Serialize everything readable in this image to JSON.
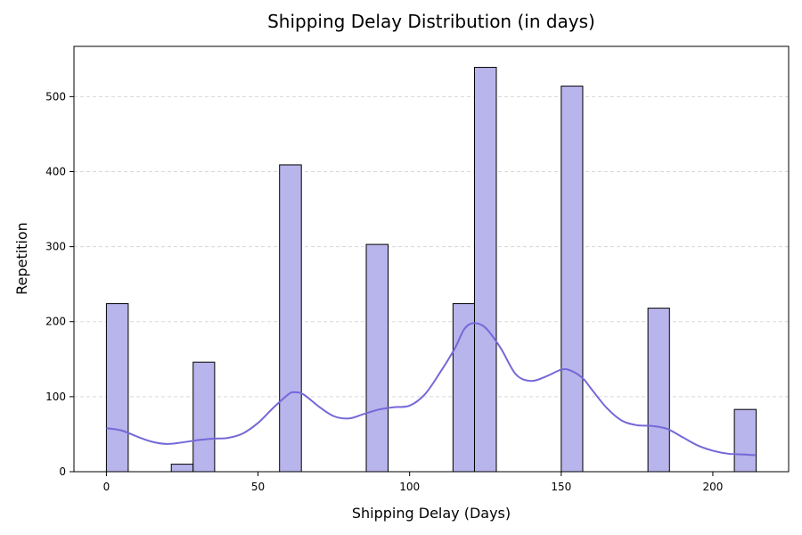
{
  "chart_data": {
    "type": "bar",
    "title": "Shipping Delay Distribution (in days)",
    "xlabel": "Shipping Delay (Days)",
    "ylabel": "Repetition",
    "xlim": [
      -10.7,
      225
    ],
    "ylim": [
      0,
      567
    ],
    "xticks": [
      0,
      50,
      100,
      150,
      200
    ],
    "yticks": [
      0,
      100,
      200,
      300,
      400,
      500
    ],
    "grid": "y-dashed",
    "bar_color": "#b8b4ec",
    "bar_edge": "#000000",
    "kde_color": "#7468d8",
    "bins": [
      {
        "x0": 0,
        "x1": 7.2,
        "count": 224
      },
      {
        "x0": 21.4,
        "x1": 28.6,
        "count": 10
      },
      {
        "x0": 28.6,
        "x1": 35.7,
        "count": 146
      },
      {
        "x0": 57.1,
        "x1": 64.3,
        "count": 409
      },
      {
        "x0": 85.7,
        "x1": 92.9,
        "count": 303
      },
      {
        "x0": 114.3,
        "x1": 121.4,
        "count": 224
      },
      {
        "x0": 121.4,
        "x1": 128.6,
        "count": 539
      },
      {
        "x0": 150,
        "x1": 157.1,
        "count": 514
      },
      {
        "x0": 178.6,
        "x1": 185.7,
        "count": 218
      },
      {
        "x0": 207.1,
        "x1": 214.3,
        "count": 83
      }
    ],
    "kde": {
      "x": [
        0,
        5,
        10,
        15,
        20,
        25,
        30,
        35,
        40,
        45,
        50,
        55,
        60,
        62,
        65,
        70,
        75,
        80,
        85,
        90,
        95,
        100,
        105,
        110,
        115,
        118,
        121,
        125,
        130,
        135,
        140,
        145,
        150,
        153,
        157,
        160,
        165,
        170,
        175,
        180,
        185,
        190,
        195,
        200,
        205,
        210,
        214
      ],
      "y": [
        58,
        55,
        47,
        40,
        37,
        39,
        42,
        44,
        45,
        51,
        65,
        85,
        103,
        106,
        103,
        87,
        74,
        71,
        77,
        83,
        86,
        88,
        103,
        132,
        165,
        190,
        198,
        192,
        165,
        130,
        121,
        127,
        136,
        135,
        125,
        110,
        85,
        68,
        62,
        61,
        57,
        46,
        35,
        28,
        24,
        23,
        22
      ]
    }
  }
}
